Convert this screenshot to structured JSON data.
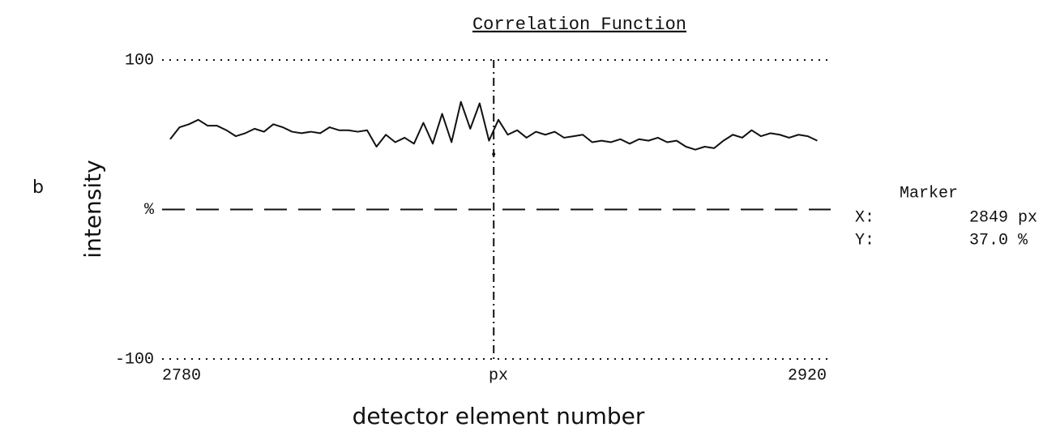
{
  "chart_data": {
    "type": "line",
    "figure_label": "b",
    "title": "Correlation Function",
    "ylabel": "intensity",
    "xlabel": "detector element number",
    "xlim": [
      2780,
      2920
    ],
    "xticks": [
      2780,
      {
        "value": 2850,
        "label": "px"
      },
      2920
    ],
    "ylim": [
      -100,
      100
    ],
    "yticks": [
      -100,
      {
        "value": 0,
        "label": "%"
      },
      100
    ],
    "grid": true,
    "color": "#111111",
    "x": [
      2780,
      2782,
      2784,
      2786,
      2788,
      2790,
      2792,
      2794,
      2796,
      2798,
      2800,
      2802,
      2804,
      2806,
      2808,
      2810,
      2812,
      2814,
      2816,
      2818,
      2820,
      2822,
      2824,
      2826,
      2828,
      2830,
      2832,
      2834,
      2836,
      2838,
      2840,
      2842,
      2844,
      2846,
      2848,
      2850,
      2852,
      2854,
      2856,
      2858,
      2860,
      2862,
      2864,
      2866,
      2868,
      2870,
      2872,
      2874,
      2876,
      2878,
      2880,
      2882,
      2884,
      2886,
      2888,
      2890,
      2892,
      2894,
      2896,
      2898,
      2900,
      2902,
      2904,
      2906,
      2908,
      2910,
      2912,
      2914,
      2916,
      2918
    ],
    "values": [
      47,
      55,
      57,
      60,
      56,
      56,
      53,
      49,
      51,
      54,
      52,
      57,
      55,
      52,
      51,
      52,
      51,
      55,
      53,
      53,
      52,
      53,
      42,
      50,
      45,
      48,
      44,
      58,
      44,
      64,
      45,
      72,
      54,
      71,
      46,
      60,
      50,
      53,
      48,
      52,
      50,
      52,
      48,
      49,
      50,
      45,
      46,
      45,
      47,
      44,
      47,
      46,
      48,
      45,
      46,
      42,
      40,
      42,
      41,
      46,
      50,
      48,
      53,
      49,
      51,
      50,
      48,
      50,
      49,
      46
    ],
    "marker": {
      "heading": "Marker",
      "x_name": "X:",
      "x": 2849,
      "x_text": "2849 px",
      "y_name": "Y:",
      "y": 37.0,
      "y_text": "37.0 %"
    }
  }
}
